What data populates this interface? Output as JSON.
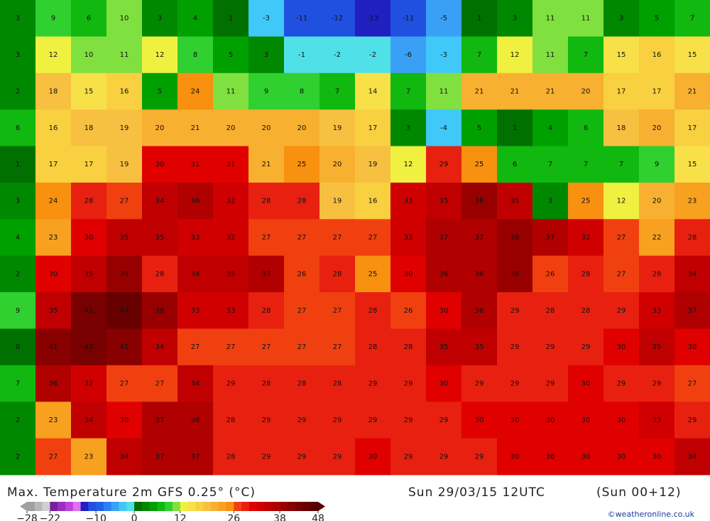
{
  "header": {
    "title": "Max. Temperature 2m GFS 0.25° (°C)",
    "date": "Sun 29/03/15 12UTC",
    "lead": "(Sun 00+12)",
    "credit": "©weatheronline.co.uk"
  },
  "colorbar": {
    "ticks": [
      {
        "value": -28,
        "label": "−28"
      },
      {
        "value": -22,
        "label": "−22"
      },
      {
        "value": -10,
        "label": "−10"
      },
      0,
      12,
      26,
      38,
      48
    ],
    "colors": [
      "#a0a0a0",
      "#b8b8b8",
      "#d0d0d0",
      "#7a1fa0",
      "#9a2fc0",
      "#c040e0",
      "#e070f0",
      "#2020c0",
      "#2050e0",
      "#2060e8",
      "#2a80f0",
      "#3aa0f5",
      "#40c8f8",
      "#50e0e8",
      "#007000",
      "#008800",
      "#00a000",
      "#10b810",
      "#30d030",
      "#80e040",
      "#f0f040",
      "#f8e048",
      "#f8d040",
      "#f8c040",
      "#f8b030",
      "#f8a020",
      "#f89010",
      "#f04010",
      "#e82010",
      "#e00000",
      "#d00000",
      "#c00000",
      "#b00000",
      "#980000",
      "#880000",
      "#780000",
      "#680000",
      "#580000"
    ]
  },
  "map": {
    "rows": [
      [
        3,
        9,
        6,
        10,
        3,
        4,
        1,
        -3,
        -11,
        -12,
        -13,
        -11,
        -5,
        1,
        3,
        11,
        11,
        3,
        5,
        7
      ],
      [
        3,
        12,
        10,
        11,
        12,
        8,
        5,
        3,
        -1,
        -2,
        -2,
        -6,
        -3,
        7,
        12,
        11,
        7,
        15,
        16,
        15
      ],
      [
        2,
        18,
        15,
        16,
        5,
        24,
        11,
        9,
        8,
        7,
        14,
        7,
        11,
        21,
        21,
        21,
        20,
        17,
        17,
        21
      ],
      [
        6,
        16,
        18,
        19,
        20,
        21,
        20,
        20,
        20,
        19,
        17,
        3,
        -4,
        5,
        1,
        4,
        6,
        18,
        20,
        17
      ],
      [
        1,
        17,
        17,
        19,
        30,
        31,
        31,
        21,
        25,
        20,
        19,
        12,
        29,
        25,
        6,
        7,
        7,
        7,
        9,
        15
      ],
      [
        3,
        24,
        28,
        27,
        34,
        36,
        32,
        28,
        28,
        19,
        16,
        33,
        35,
        38,
        35,
        3,
        25,
        12,
        20,
        23
      ],
      [
        4,
        23,
        30,
        35,
        35,
        33,
        32,
        27,
        27,
        27,
        27,
        33,
        37,
        37,
        38,
        37,
        32,
        27,
        22,
        28
      ],
      [
        2,
        30,
        35,
        39,
        28,
        34,
        35,
        37,
        26,
        28,
        25,
        30,
        36,
        36,
        38,
        26,
        28,
        27,
        28,
        34
      ],
      [
        9,
        35,
        42,
        44,
        38,
        33,
        33,
        28,
        27,
        27,
        28,
        26,
        30,
        36,
        29,
        28,
        28,
        29,
        33,
        37
      ],
      [
        0,
        41,
        42,
        41,
        34,
        27,
        27,
        27,
        27,
        27,
        28,
        28,
        35,
        35,
        29,
        29,
        29,
        30,
        35,
        30
      ],
      [
        7,
        36,
        32,
        27,
        27,
        34,
        29,
        28,
        28,
        28,
        29,
        29,
        30,
        29,
        29,
        29,
        30,
        29,
        29,
        27
      ],
      [
        2,
        23,
        34,
        30,
        37,
        36,
        28,
        29,
        29,
        29,
        29,
        29,
        29,
        30,
        30,
        30,
        30,
        30,
        33,
        29
      ],
      [
        2,
        27,
        23,
        34,
        37,
        37,
        28,
        29,
        29,
        29,
        30,
        29,
        29,
        29,
        30,
        30,
        30,
        30,
        30,
        34
      ]
    ]
  }
}
